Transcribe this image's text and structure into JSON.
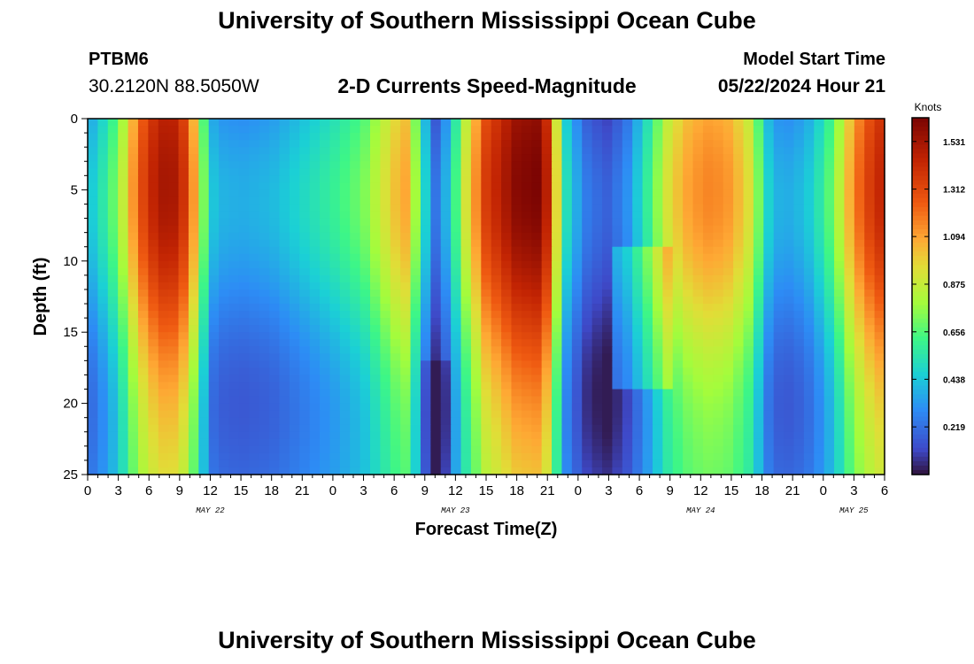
{
  "header": {
    "title": "University of Southern Mississippi Ocean Cube",
    "station_id": "PTBM6",
    "station_coords": "30.2120N  88.5050W",
    "plot_title": "2-D Currents Speed-Magnitude",
    "model_start_label": "Model Start Time",
    "model_start_value": "05/22/2024 Hour 21"
  },
  "footer": {
    "title": "University of Southern Mississippi Ocean Cube"
  },
  "chart_data": {
    "type": "heatmap",
    "title": "2-D Currents Speed-Magnitude",
    "xlabel": "Forecast Time(Z)",
    "ylabel": "Depth (ft)",
    "x_range_hours": [
      0,
      78
    ],
    "ylim": [
      0,
      25
    ],
    "y_ticks": [
      0,
      5,
      10,
      15,
      20,
      25
    ],
    "x_ticks": [
      {
        "h": 0,
        "label": "0"
      },
      {
        "h": 3,
        "label": "3"
      },
      {
        "h": 6,
        "label": "6"
      },
      {
        "h": 9,
        "label": "9"
      },
      {
        "h": 12,
        "label": "12"
      },
      {
        "h": 15,
        "label": "15"
      },
      {
        "h": 18,
        "label": "18"
      },
      {
        "h": 21,
        "label": "21"
      },
      {
        "h": 24,
        "label": "0"
      },
      {
        "h": 27,
        "label": "3"
      },
      {
        "h": 30,
        "label": "6"
      },
      {
        "h": 33,
        "label": "9"
      },
      {
        "h": 36,
        "label": "12"
      },
      {
        "h": 39,
        "label": "15"
      },
      {
        "h": 42,
        "label": "18"
      },
      {
        "h": 45,
        "label": "21"
      },
      {
        "h": 48,
        "label": "0"
      },
      {
        "h": 51,
        "label": "3"
      },
      {
        "h": 54,
        "label": "6"
      },
      {
        "h": 57,
        "label": "9"
      },
      {
        "h": 60,
        "label": "12"
      },
      {
        "h": 63,
        "label": "15"
      },
      {
        "h": 66,
        "label": "18"
      },
      {
        "h": 69,
        "label": "21"
      },
      {
        "h": 72,
        "label": "0"
      },
      {
        "h": 75,
        "label": "3"
      },
      {
        "h": 78,
        "label": "6"
      }
    ],
    "date_labels": [
      {
        "h": 12,
        "label": "MAY 22"
      },
      {
        "h": 36,
        "label": "MAY 23"
      },
      {
        "h": 60,
        "label": "MAY 24"
      },
      {
        "h": 75,
        "label": "MAY 25"
      }
    ],
    "colorbar": {
      "unit": "Knots",
      "min": 0,
      "max": 1.64,
      "ticks": [
        1.531,
        1.312,
        1.094,
        0.875,
        0.656,
        0.438,
        0.219
      ],
      "tick_labels": [
        "1.531",
        "1.312",
        "1.094",
        "0.875",
        "0.656",
        "0.438",
        "0.219"
      ]
    },
    "time_profile_knots": [
      [
        0,
        0.35
      ],
      [
        1,
        0.42
      ],
      [
        2,
        0.55
      ],
      [
        3,
        0.68
      ],
      [
        4,
        0.95
      ],
      [
        5,
        1.2
      ],
      [
        6,
        1.35
      ],
      [
        7,
        1.45
      ],
      [
        8,
        1.48
      ],
      [
        9,
        1.42
      ],
      [
        10,
        1.2
      ],
      [
        11,
        0.8
      ],
      [
        12,
        0.38
      ],
      [
        13,
        0.32
      ],
      [
        15,
        0.3
      ],
      [
        18,
        0.33
      ],
      [
        21,
        0.42
      ],
      [
        24,
        0.52
      ],
      [
        27,
        0.65
      ],
      [
        29,
        0.85
      ],
      [
        31,
        1.05
      ],
      [
        32,
        0.75
      ],
      [
        33,
        0.42
      ],
      [
        34,
        0.15
      ],
      [
        35,
        0.3
      ],
      [
        36,
        0.55
      ],
      [
        37,
        0.85
      ],
      [
        39,
        1.3
      ],
      [
        42,
        1.55
      ],
      [
        44,
        1.58
      ],
      [
        45,
        1.4
      ],
      [
        46,
        0.85
      ],
      [
        47,
        0.4
      ],
      [
        48,
        0.28
      ],
      [
        49,
        0.16
      ],
      [
        51,
        0.1
      ],
      [
        53,
        0.25
      ],
      [
        55,
        0.55
      ],
      [
        57,
        0.9
      ],
      [
        59,
        1.05
      ],
      [
        61,
        1.1
      ],
      [
        63,
        1.05
      ],
      [
        65,
        0.85
      ],
      [
        66,
        0.55
      ],
      [
        67,
        0.32
      ],
      [
        69,
        0.3
      ],
      [
        71,
        0.4
      ],
      [
        73,
        0.65
      ],
      [
        75,
        1.1
      ],
      [
        77,
        1.35
      ],
      [
        78,
        1.4
      ]
    ]
  }
}
